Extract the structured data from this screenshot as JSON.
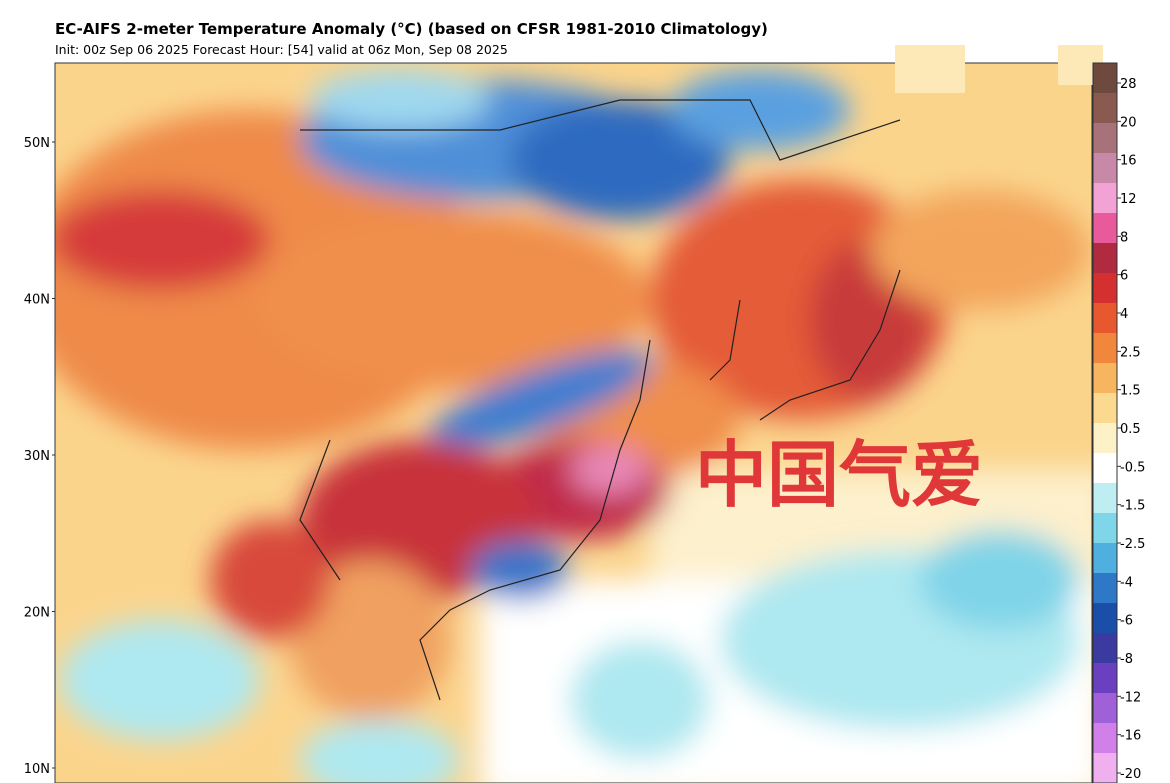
{
  "header": {
    "title": "EC-AIFS 2-meter Temperature Anomaly (°C) (based on CFSR 1981-2010 Climatology)",
    "subtitle": "Init: 00z Sep 06 2025   Forecast Hour: [54]   valid at 06z Mon, Sep 08 2025"
  },
  "map": {
    "lat_labels": [
      "50N",
      "40N",
      "30N",
      "20N",
      "10N"
    ],
    "watermark": "中国气爱"
  },
  "colorbar": {
    "labels": [
      "28",
      "20",
      "16",
      "12",
      "8",
      "6",
      "4",
      "2.5",
      "1.5",
      "0.5",
      "-0.5",
      "-1.5",
      "-2.5",
      "-4",
      "-6",
      "-8",
      "-12",
      "-16",
      "-20"
    ],
    "colors": [
      "#6e4a3e",
      "#8a5a50",
      "#a8727a",
      "#c888a8",
      "#f2a2d4",
      "#e85a9c",
      "#b02a40",
      "#d43030",
      "#e8582e",
      "#f0873c",
      "#f7b560",
      "#fbd98e",
      "#fdf1c8",
      "#ffffff",
      "#bfeef2",
      "#7fd6e8",
      "#4fb0e0",
      "#2f78c8",
      "#1a4ea8",
      "#3a3aa0",
      "#6a40c0",
      "#a060d8",
      "#d080e8",
      "#f0b0f0"
    ]
  }
}
